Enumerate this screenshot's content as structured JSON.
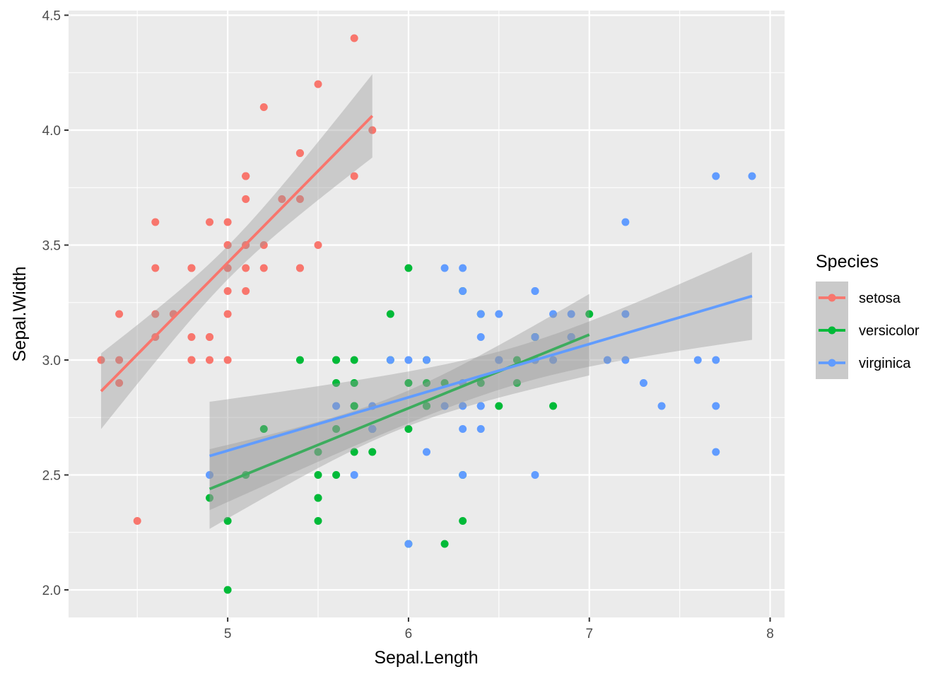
{
  "chart_data": {
    "type": "scatter",
    "title": "",
    "xlabel": "Sepal.Length",
    "ylabel": "Sepal.Width",
    "xlim": [
      4.12,
      8.08
    ],
    "ylim": [
      1.88,
      4.52
    ],
    "xticks": [
      5,
      6,
      7,
      8
    ],
    "xtick_labels": [
      "5",
      "6",
      "7",
      "8"
    ],
    "yticks": [
      2.0,
      2.5,
      3.0,
      3.5,
      4.0,
      4.5
    ],
    "ytick_labels": [
      "2.0",
      "2.5",
      "3.0",
      "3.5",
      "4.0",
      "4.5"
    ],
    "grid": true,
    "smooth": "lm with 95% confidence band",
    "legend": {
      "title": "Species",
      "placement": "right"
    },
    "series": [
      {
        "name": "setosa",
        "color": "#F8766D",
        "x": [
          5.1,
          4.9,
          4.7,
          4.6,
          5.0,
          5.4,
          4.6,
          5.0,
          4.4,
          4.9,
          5.4,
          4.8,
          4.8,
          4.3,
          5.8,
          5.7,
          5.4,
          5.1,
          5.7,
          5.1,
          5.4,
          5.1,
          4.6,
          5.1,
          4.8,
          5.0,
          5.0,
          5.2,
          5.2,
          4.7,
          4.8,
          5.4,
          5.2,
          5.5,
          4.9,
          5.0,
          5.5,
          4.9,
          4.4,
          5.1,
          5.0,
          4.5,
          4.4,
          5.0,
          5.1,
          4.8,
          5.1,
          4.6,
          5.3,
          5.0
        ],
        "y": [
          3.5,
          3.0,
          3.2,
          3.1,
          3.6,
          3.9,
          3.4,
          3.4,
          2.9,
          3.1,
          3.7,
          3.4,
          3.0,
          3.0,
          4.0,
          4.4,
          3.9,
          3.5,
          3.8,
          3.8,
          3.4,
          3.7,
          3.6,
          3.3,
          3.4,
          3.0,
          3.4,
          3.5,
          3.4,
          3.2,
          3.1,
          3.4,
          4.1,
          4.2,
          3.1,
          3.2,
          3.5,
          3.6,
          3.0,
          3.4,
          3.5,
          2.3,
          3.2,
          3.5,
          3.8,
          3.0,
          3.8,
          3.2,
          3.7,
          3.3
        ]
      },
      {
        "name": "versicolor",
        "color": "#00BA38",
        "x": [
          7.0,
          6.4,
          6.9,
          5.5,
          6.5,
          5.7,
          6.3,
          4.9,
          6.6,
          5.2,
          5.0,
          5.9,
          6.0,
          6.1,
          5.6,
          6.7,
          5.6,
          5.8,
          6.2,
          5.6,
          5.9,
          6.1,
          6.3,
          6.1,
          6.4,
          6.6,
          6.8,
          6.7,
          6.0,
          5.7,
          5.5,
          5.5,
          5.8,
          6.0,
          5.4,
          6.0,
          6.7,
          6.3,
          5.6,
          5.5,
          5.5,
          6.1,
          5.8,
          5.0,
          5.6,
          5.7,
          5.7,
          6.2,
          5.1,
          5.7
        ],
        "y": [
          3.2,
          3.2,
          3.1,
          2.3,
          2.8,
          2.8,
          3.3,
          2.4,
          2.9,
          2.7,
          2.0,
          3.0,
          2.2,
          2.9,
          2.9,
          3.1,
          3.0,
          2.7,
          2.2,
          2.5,
          3.2,
          2.8,
          2.5,
          2.8,
          2.9,
          3.0,
          2.8,
          3.0,
          2.9,
          2.6,
          2.4,
          2.4,
          2.7,
          2.7,
          3.0,
          3.4,
          3.1,
          2.3,
          3.0,
          2.5,
          2.6,
          3.0,
          2.6,
          2.3,
          2.7,
          3.0,
          2.9,
          2.9,
          2.5,
          2.8
        ]
      },
      {
        "name": "virginica",
        "color": "#619CFF",
        "x": [
          6.3,
          5.8,
          7.1,
          6.3,
          6.5,
          7.6,
          4.9,
          7.3,
          6.7,
          7.2,
          6.5,
          6.4,
          6.8,
          5.7,
          5.8,
          6.4,
          6.5,
          7.7,
          7.7,
          6.0,
          6.9,
          5.6,
          7.7,
          6.3,
          6.7,
          7.2,
          6.2,
          6.1,
          6.4,
          7.2,
          7.4,
          7.9,
          6.4,
          6.3,
          6.1,
          7.7,
          6.3,
          6.4,
          6.0,
          6.9,
          6.7,
          6.9,
          5.8,
          6.8,
          6.7,
          6.7,
          6.3,
          6.5,
          6.2,
          5.9
        ],
        "y": [
          3.3,
          2.7,
          3.0,
          2.9,
          3.0,
          3.0,
          2.5,
          2.9,
          2.5,
          3.6,
          3.2,
          2.7,
          3.0,
          2.5,
          2.8,
          3.2,
          3.0,
          3.8,
          2.6,
          2.2,
          3.2,
          2.8,
          2.8,
          2.7,
          3.3,
          3.2,
          2.8,
          3.0,
          2.8,
          3.0,
          2.8,
          3.8,
          2.8,
          2.8,
          2.6,
          3.0,
          3.4,
          3.1,
          3.0,
          3.1,
          3.1,
          3.1,
          2.7,
          3.2,
          3.3,
          3.0,
          2.5,
          3.0,
          3.4,
          3.0
        ]
      }
    ]
  }
}
